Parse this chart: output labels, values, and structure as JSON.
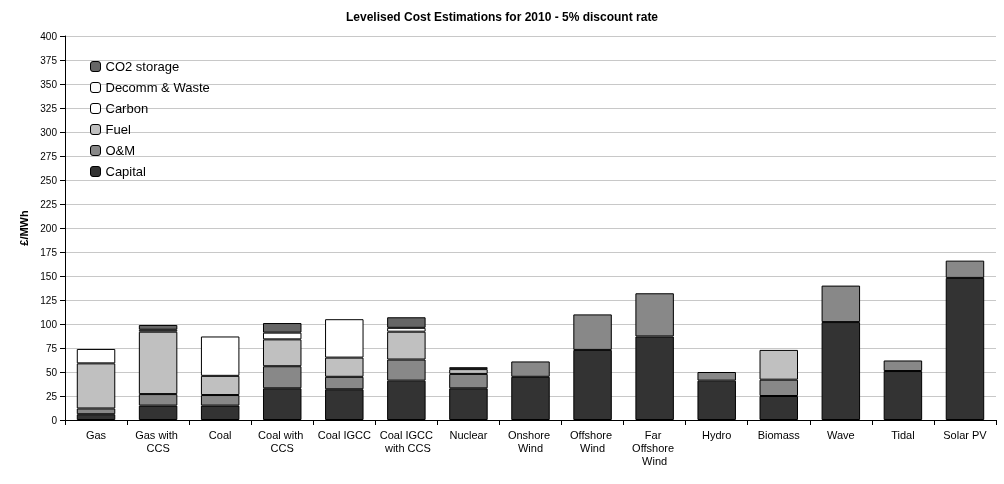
{
  "chart_data": {
    "type": "bar",
    "title": "Levelised Cost Estimations for 2010 - 5% discount rate",
    "ylabel": "£/MWh",
    "stacked": true,
    "grid": "y",
    "legend": "top left",
    "categories": [
      "Gas",
      "Gas with CCS",
      "Coal",
      "Coal with CCS",
      "Coal IGCC",
      "Coal IGCC with CCS",
      "Nuclear",
      "Onshore Wind",
      "Offshore Wind",
      "Far Offshore Wind",
      "Hydro",
      "Biomass",
      "Wave",
      "Tidal",
      "Solar PV"
    ],
    "ylim": [
      0,
      400
    ],
    "yticks": [
      0,
      25,
      50,
      75,
      100,
      125,
      150,
      175,
      200,
      225,
      250,
      275,
      300,
      325,
      350,
      375,
      400
    ],
    "series": [
      {
        "name": "Capital",
        "color": "#333333",
        "values": [
          6,
          15,
          15,
          33,
          32,
          41,
          33,
          45,
          73,
          87,
          41,
          25,
          102,
          51,
          148
        ]
      },
      {
        "name": "O&M",
        "color": "#888888",
        "values": [
          6,
          12,
          11,
          23,
          13,
          22,
          15,
          16,
          37,
          45,
          9,
          17,
          38,
          11,
          18
        ]
      },
      {
        "name": "Fuel",
        "color": "#c0c0c0",
        "values": [
          47,
          65,
          20,
          28,
          20,
          29,
          5,
          null,
          null,
          null,
          null,
          31,
          null,
          null,
          null
        ]
      },
      {
        "name": "Carbon",
        "color": "#ffffff",
        "values": [
          15,
          2,
          41,
          7,
          40,
          4,
          null,
          null,
          null,
          null,
          null,
          null,
          null,
          null,
          null
        ]
      },
      {
        "name": "Decomm & Waste",
        "color": "#fafafa",
        "values": [
          null,
          null,
          null,
          null,
          null,
          null,
          2,
          null,
          null,
          null,
          null,
          null,
          null,
          null,
          null
        ]
      },
      {
        "name": "CO2 storage",
        "color": "#666666",
        "values": [
          null,
          5,
          null,
          10,
          null,
          11,
          null,
          null,
          null,
          null,
          null,
          null,
          null,
          null,
          null
        ]
      }
    ]
  }
}
